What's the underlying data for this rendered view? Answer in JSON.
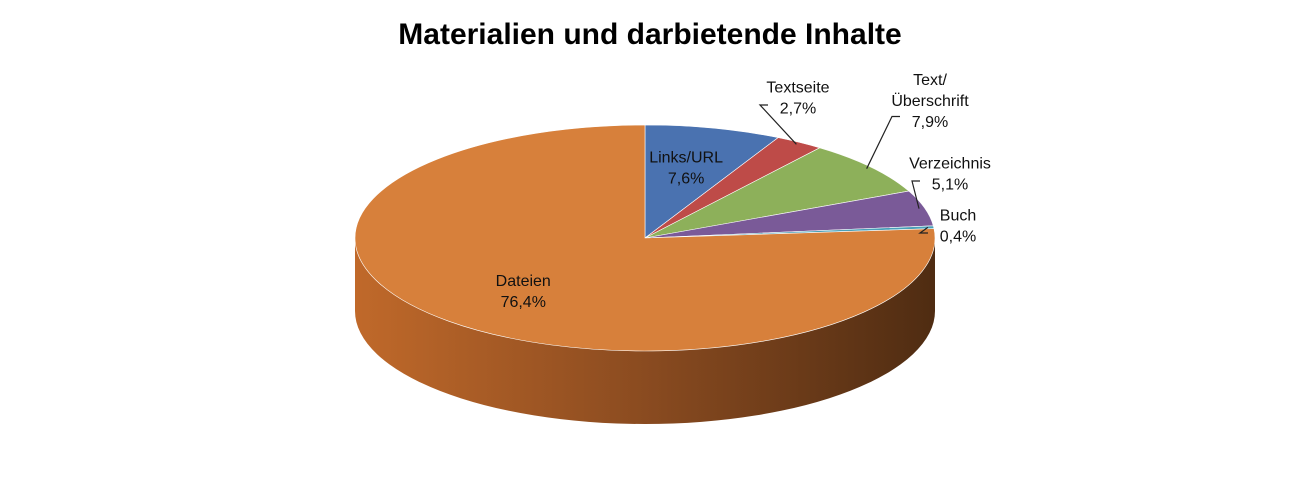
{
  "chart_data": {
    "type": "pie",
    "title": "Materialien und darbietende Inhalte",
    "slices": [
      {
        "name": "Links/URL",
        "value": 7.6,
        "label": "7,6%",
        "color": "#4a72b0"
      },
      {
        "name": "Textseite",
        "value": 2.7,
        "label": "2,7%",
        "color": "#be4b48"
      },
      {
        "name": "Text/\nÜberschrift",
        "value": 7.9,
        "label": "7,9%",
        "color": "#8db05a"
      },
      {
        "name": "Verzeichnis",
        "value": 5.1,
        "label": "5,1%",
        "color": "#7a5a98"
      },
      {
        "name": "Buch",
        "value": 0.4,
        "label": "0,4%",
        "color": "#4aa0b8"
      },
      {
        "name": "Dateien",
        "value": 76.4,
        "label": "76,4%",
        "color": "#d7803b"
      }
    ],
    "legend": "none",
    "style": "3d"
  }
}
